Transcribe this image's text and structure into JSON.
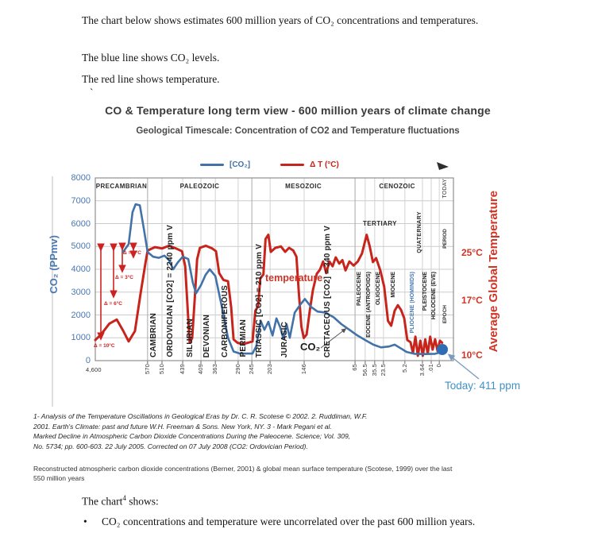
{
  "document": {
    "para1": "The chart below shows estimates 600 million years of CO₂ concentrations and temperatures.",
    "para2": "The blue line shows CO₂ levels.",
    "para3": "The red line shows temperature.",
    "stray_mark": "`",
    "footnote_lines": [
      "1- Analysis of the Temperature Oscillations in Geological Eras by Dr. C. R. Scotese ©  2002. 2. Ruddiman, W.F.",
      "2001. Earth's Climate: past and future W.H. Freeman & Sons. New York, NY. 3   - Mark Pegani et al.",
      "Marked Decline in Atmospheric Carbon Dioxide Concentrations During the Paleocene. Science; Vol. 309,",
      "No. 5734; pp. 600-603. 22 July 2005. Corrected on 07 July 2008 (CO2: Ordovician Period)."
    ],
    "caption_lines": [
      "Reconstructed atmospheric carbon dioxide concentrations (Berner, 2001) & global mean surface temperature (Scotese, 1999) over   the last",
      "550 million years"
    ],
    "chart_shows": {
      "prefix": "The chart",
      "sup": "4",
      "suffix": " shows:"
    },
    "bullet_glyph": "•",
    "bullet_text": "CO₂ concentrations and temperature were uncorrelated over the past 600 million years."
  },
  "chart": {
    "title": "CO & Temperature long term view - 600 million years of climate change",
    "subtitle": "Geological Timescale: Concentration of CO2 and Temperature fluctuations",
    "legend": [
      {
        "label": "[CO₂]",
        "color": "#4272a8"
      },
      {
        "label": "Δ T (°C)",
        "color": "#c7241c"
      }
    ],
    "left_axis": {
      "label": "CO₂  (PPmv)",
      "ticks": [
        8000,
        7000,
        6000,
        5000,
        4000,
        3000,
        2000,
        1000,
        0
      ],
      "color": "#4878b2"
    },
    "right_axis": {
      "label": "Average Global Temperature",
      "tick_labels": [
        "25°C",
        "17°C",
        "10°C"
      ],
      "color": "#cf3526"
    },
    "first_tick": "4,600",
    "today_note": "Today: 411 ppm",
    "today_note_color": "#4191c9",
    "today_col_label": "TODAY",
    "row_labels": {
      "period": "PERIOD",
      "epoch": "EPOCH"
    },
    "eras": [
      {
        "label": "PRECAMBRIAN",
        "from": 0,
        "to": 14.9
      },
      {
        "label": "PALEOZOIC",
        "from": 14.9,
        "to": 44.6
      },
      {
        "label": "MESOZOIC",
        "from": 44.6,
        "to": 74.0
      },
      {
        "label": "CENOZOIC",
        "from": 74.0,
        "to": 98.0
      }
    ],
    "periods": [
      {
        "label": "CAMBRIAN",
        "pct": 16.9
      },
      {
        "label": "ORDOVICIAN [CO2] = 2240 ppm V",
        "pct": 21.8
      },
      {
        "label": "SILURIAN",
        "pct": 27.4
      },
      {
        "label": "DEVONIAN",
        "pct": 32.2
      },
      {
        "label": "CARBONIFEROUS",
        "pct": 37.3
      },
      {
        "label": "PERMIAN",
        "pct": 42.5
      },
      {
        "label": "TRIASSIC [CO2] = 210 ppm V",
        "pct": 47.1
      },
      {
        "label": "JURASIC",
        "pct": 54.4
      },
      {
        "label": "CRETACEOUS [CO2] = 340 ppm V",
        "pct": 66.5
      }
    ],
    "tertiary": {
      "label": "TERTIARY",
      "from": 74.0,
      "to": 88.2
    },
    "quaternary": {
      "label": "QUATERNARY",
      "pct": 92.0
    },
    "epochs": [
      {
        "label": "PALEOCENE",
        "pct": 75.5,
        "color": "#222"
      },
      {
        "label": "EOCENE (ANTROPOIDS)",
        "pct": 78.3,
        "color": "#222"
      },
      {
        "label": "OLIGOCENE",
        "pct": 81.0,
        "color": "#222"
      },
      {
        "label": "MIOCENE",
        "pct": 85.3,
        "color": "#222"
      },
      {
        "label": "PLIOCENE (HOMINIDS)",
        "pct": 90.7,
        "color": "#4878b2"
      },
      {
        "label": "PLEISTOCENE",
        "pct": 94.3,
        "color": "#222"
      },
      {
        "label": "HOLOCENE (EVE)",
        "pct": 96.8,
        "color": "#222"
      }
    ],
    "annotations": {
      "temperature": "temperature",
      "co2": "CO₂"
    },
    "delta_labels": [
      "Δ = 10°C",
      "Δ = 6°C",
      "Δ = 3°C",
      "Δ = 1°C"
    ]
  },
  "chart_data": {
    "type": "line",
    "title": "CO & Temperature long term view - 600 million years of climate change",
    "subtitle": "Geological Timescale: Concentration of CO2 and Temperature fluctuations",
    "x_axis": {
      "unit": "million years ago (non-linear geological scale)",
      "ticks": [
        {
          "label": "4,600",
          "pct": 0,
          "horizontal": true
        },
        {
          "label": "570",
          "pct": 14.9
        },
        {
          "label": "510",
          "pct": 19.0
        },
        {
          "label": "439",
          "pct": 24.9
        },
        {
          "label": "409",
          "pct": 30.1
        },
        {
          "label": "363",
          "pct": 34.2
        },
        {
          "label": "290",
          "pct": 40.7
        },
        {
          "label": "245",
          "pct": 44.6
        },
        {
          "label": "203",
          "pct": 49.8
        },
        {
          "label": "146",
          "pct": 59.5
        },
        {
          "label": "65",
          "pct": 74.0
        },
        {
          "label": "56.5",
          "pct": 76.9
        },
        {
          "label": "35.5",
          "pct": 79.6
        },
        {
          "label": "23.5",
          "pct": 82.1
        },
        {
          "label": "5.2",
          "pct": 88.2
        },
        {
          "label": "3.64",
          "pct": 93.2
        },
        {
          "label": ".01",
          "pct": 95.7
        },
        {
          "label": "0",
          "pct": 98.0
        }
      ]
    },
    "y_left": {
      "label": "CO₂ (PPmv)",
      "range": [
        0,
        8000
      ]
    },
    "y_right": {
      "label": "Average Global Temperature (°C)",
      "ticks": [
        25,
        17,
        10
      ]
    },
    "today_value_ppm": 411,
    "series": [
      {
        "name": "[CO₂]",
        "unit": "ppmv",
        "color": "#4272a8",
        "points": [
          [
            7.9,
            4750
          ],
          [
            9.5,
            5100
          ],
          [
            10.6,
            6500
          ],
          [
            11.5,
            6850
          ],
          [
            12.7,
            6800
          ],
          [
            13.8,
            5800
          ],
          [
            14.9,
            4750
          ],
          [
            16.5,
            4550
          ],
          [
            18.1,
            4500
          ],
          [
            19.7,
            4600
          ],
          [
            21.0,
            4400
          ],
          [
            22.2,
            4000
          ],
          [
            23.5,
            4300
          ],
          [
            24.9,
            4550
          ],
          [
            26.5,
            4450
          ],
          [
            27.8,
            3400
          ],
          [
            28.7,
            2950
          ],
          [
            30.1,
            3300
          ],
          [
            31.4,
            3750
          ],
          [
            32.6,
            4000
          ],
          [
            34.2,
            3700
          ],
          [
            36.0,
            2400
          ],
          [
            37.8,
            1000
          ],
          [
            39.4,
            400
          ],
          [
            41.2,
            310
          ],
          [
            44.8,
            310
          ],
          [
            45.9,
            650
          ],
          [
            47.1,
            1750
          ],
          [
            48.2,
            1350
          ],
          [
            49.3,
            1700
          ],
          [
            50.5,
            1100
          ],
          [
            51.6,
            1850
          ],
          [
            52.7,
            1450
          ],
          [
            53.6,
            950
          ],
          [
            54.5,
            1600
          ],
          [
            55.4,
            1000
          ],
          [
            56.8,
            2100
          ],
          [
            58.4,
            2450
          ],
          [
            59.7,
            2700
          ],
          [
            61.5,
            2350
          ],
          [
            63.3,
            2150
          ],
          [
            65.6,
            2100
          ],
          [
            67.9,
            1900
          ],
          [
            70.1,
            1600
          ],
          [
            72.4,
            1350
          ],
          [
            74.7,
            1100
          ],
          [
            76.9,
            900
          ],
          [
            79.2,
            700
          ],
          [
            81.4,
            580
          ],
          [
            83.7,
            620
          ],
          [
            85.3,
            700
          ],
          [
            86.9,
            550
          ],
          [
            88.7,
            380
          ],
          [
            90.9,
            300
          ],
          [
            93.9,
            290
          ],
          [
            96.8,
            300
          ],
          [
            98.6,
            380
          ]
        ]
      },
      {
        "name": "Δ T (°C)",
        "unit": "°C",
        "color": "#c7241c",
        "points": [
          [
            0,
            12.2
          ],
          [
            1.6,
            13.0
          ],
          [
            4.0,
            14.6
          ],
          [
            6.1,
            15.2
          ],
          [
            7.9,
            13.6
          ],
          [
            9.5,
            12.0
          ],
          [
            11.3,
            13.5
          ],
          [
            12.9,
            19.0
          ],
          [
            14.3,
            23.5
          ],
          [
            14.9,
            25.3
          ],
          [
            17.0,
            25.8
          ],
          [
            19.0,
            25.6
          ],
          [
            21.0,
            26.0
          ],
          [
            23.0,
            25.6
          ],
          [
            24.7,
            25.2
          ],
          [
            25.6,
            23.0
          ],
          [
            26.4,
            16.0
          ],
          [
            26.9,
            11.8
          ],
          [
            27.6,
            12.5
          ],
          [
            28.3,
            18.0
          ],
          [
            29.0,
            24.0
          ],
          [
            29.8,
            25.7
          ],
          [
            31.5,
            26.0
          ],
          [
            33.3,
            25.6
          ],
          [
            34.4,
            25.2
          ],
          [
            35.3,
            22.0
          ],
          [
            36.5,
            21.0
          ],
          [
            37.8,
            20.8
          ],
          [
            38.7,
            17.0
          ],
          [
            39.4,
            12.3
          ],
          [
            40.5,
            11.8
          ],
          [
            42.0,
            11.6
          ],
          [
            43.5,
            11.8
          ],
          [
            44.8,
            12.0
          ],
          [
            45.6,
            16.5
          ],
          [
            46.4,
            17.2
          ],
          [
            47.0,
            21.2
          ],
          [
            47.9,
            21.8
          ],
          [
            48.5,
            27.0
          ],
          [
            49.3,
            27.6
          ],
          [
            50.0,
            25.1
          ],
          [
            51.3,
            25.7
          ],
          [
            52.9,
            25.9
          ],
          [
            54.1,
            25.1
          ],
          [
            55.2,
            25.7
          ],
          [
            56.4,
            25.3
          ],
          [
            57.3,
            24.4
          ],
          [
            58.0,
            19.0
          ],
          [
            58.7,
            14.2
          ],
          [
            59.4,
            12.5
          ],
          [
            60.2,
            13.0
          ],
          [
            61.1,
            16.5
          ],
          [
            62.0,
            19.5
          ],
          [
            63.1,
            21.9
          ],
          [
            64.0,
            22.5
          ],
          [
            64.9,
            23.7
          ],
          [
            65.8,
            22.0
          ],
          [
            66.7,
            23.7
          ],
          [
            67.6,
            23.0
          ],
          [
            68.5,
            24.3
          ],
          [
            69.5,
            23.4
          ],
          [
            70.4,
            23.9
          ],
          [
            71.3,
            22.4
          ],
          [
            72.4,
            23.7
          ],
          [
            73.6,
            23.1
          ],
          [
            74.8,
            23.7
          ],
          [
            76.0,
            24.9
          ],
          [
            77.3,
            27.6
          ],
          [
            78.2,
            25.9
          ],
          [
            79.1,
            23.6
          ],
          [
            80.0,
            24.2
          ],
          [
            81.2,
            22.4
          ],
          [
            82.3,
            20.0
          ],
          [
            83.4,
            15.0
          ],
          [
            84.3,
            14.3
          ],
          [
            85.3,
            16.5
          ],
          [
            86.2,
            17.3
          ],
          [
            87.1,
            16.6
          ],
          [
            88.0,
            15.4
          ],
          [
            88.9,
            12.2
          ],
          [
            89.8,
            11.9
          ],
          [
            90.5,
            10.3
          ],
          [
            91.2,
            12.7
          ],
          [
            91.9,
            9.9
          ],
          [
            92.6,
            12.1
          ],
          [
            93.3,
            9.9
          ],
          [
            94.0,
            12.3
          ],
          [
            94.7,
            10.2
          ],
          [
            95.4,
            12.7
          ],
          [
            96.1,
            10.8
          ],
          [
            96.8,
            12.3
          ],
          [
            97.5,
            10.6
          ],
          [
            98.2,
            12.1
          ],
          [
            98.8,
            11.8
          ]
        ]
      }
    ]
  }
}
